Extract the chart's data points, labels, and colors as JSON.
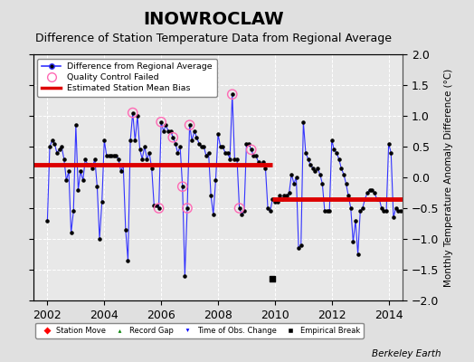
{
  "title": "INOWROCLAW",
  "subtitle": "Difference of Station Temperature Data from Regional Average",
  "ylabel": "Monthly Temperature Anomaly Difference (°C)",
  "xlim": [
    2001.5,
    2014.5
  ],
  "ylim": [
    -2,
    2
  ],
  "yticks": [
    -2,
    -1.5,
    -1,
    -0.5,
    0,
    0.5,
    1,
    1.5,
    2
  ],
  "xticks": [
    2002,
    2004,
    2006,
    2008,
    2010,
    2012,
    2014
  ],
  "background_color": "#e0e0e0",
  "plot_bg_color": "#e8e8e8",
  "bias_segments": [
    {
      "x_start": 2001.5,
      "x_end": 2009.92,
      "bias": 0.2
    },
    {
      "x_start": 2009.92,
      "x_end": 2014.5,
      "bias": -0.35
    }
  ],
  "empirical_break_x": 2009.92,
  "empirical_break_y": -1.65,
  "monthly_data": [
    [
      2002.0,
      -0.7
    ],
    [
      2002.083,
      0.5
    ],
    [
      2002.167,
      0.6
    ],
    [
      2002.25,
      0.55
    ],
    [
      2002.333,
      0.4
    ],
    [
      2002.417,
      0.45
    ],
    [
      2002.5,
      0.5
    ],
    [
      2002.583,
      0.3
    ],
    [
      2002.667,
      -0.05
    ],
    [
      2002.75,
      0.1
    ],
    [
      2002.833,
      -0.9
    ],
    [
      2002.917,
      -0.55
    ],
    [
      2003.0,
      0.85
    ],
    [
      2003.083,
      -0.2
    ],
    [
      2003.167,
      0.1
    ],
    [
      2003.25,
      -0.05
    ],
    [
      2003.333,
      0.3
    ],
    [
      2003.417,
      0.2
    ],
    [
      2003.5,
      0.2
    ],
    [
      2003.583,
      0.15
    ],
    [
      2003.667,
      0.3
    ],
    [
      2003.75,
      -0.15
    ],
    [
      2003.833,
      -1.0
    ],
    [
      2003.917,
      -0.4
    ],
    [
      2004.0,
      0.6
    ],
    [
      2004.083,
      0.35
    ],
    [
      2004.167,
      0.35
    ],
    [
      2004.25,
      0.35
    ],
    [
      2004.333,
      0.35
    ],
    [
      2004.417,
      0.35
    ],
    [
      2004.5,
      0.3
    ],
    [
      2004.583,
      0.1
    ],
    [
      2004.667,
      0.2
    ],
    [
      2004.75,
      -0.85
    ],
    [
      2004.833,
      -1.35
    ],
    [
      2004.917,
      0.6
    ],
    [
      2005.0,
      1.05
    ],
    [
      2005.083,
      0.6
    ],
    [
      2005.167,
      1.0
    ],
    [
      2005.25,
      0.45
    ],
    [
      2005.333,
      0.3
    ],
    [
      2005.417,
      0.5
    ],
    [
      2005.5,
      0.3
    ],
    [
      2005.583,
      0.4
    ],
    [
      2005.667,
      0.15
    ],
    [
      2005.75,
      -0.45
    ],
    [
      2005.833,
      -0.45
    ],
    [
      2005.917,
      -0.5
    ],
    [
      2006.0,
      0.9
    ],
    [
      2006.083,
      0.75
    ],
    [
      2006.167,
      0.85
    ],
    [
      2006.25,
      0.75
    ],
    [
      2006.333,
      0.75
    ],
    [
      2006.417,
      0.65
    ],
    [
      2006.5,
      0.55
    ],
    [
      2006.583,
      0.4
    ],
    [
      2006.667,
      0.5
    ],
    [
      2006.75,
      -0.15
    ],
    [
      2006.833,
      -1.6
    ],
    [
      2006.917,
      -0.5
    ],
    [
      2007.0,
      0.85
    ],
    [
      2007.083,
      0.6
    ],
    [
      2007.167,
      0.75
    ],
    [
      2007.25,
      0.65
    ],
    [
      2007.333,
      0.55
    ],
    [
      2007.417,
      0.5
    ],
    [
      2007.5,
      0.5
    ],
    [
      2007.583,
      0.35
    ],
    [
      2007.667,
      0.4
    ],
    [
      2007.75,
      -0.3
    ],
    [
      2007.833,
      -0.6
    ],
    [
      2007.917,
      -0.05
    ],
    [
      2008.0,
      0.7
    ],
    [
      2008.083,
      0.5
    ],
    [
      2008.167,
      0.5
    ],
    [
      2008.25,
      0.4
    ],
    [
      2008.333,
      0.4
    ],
    [
      2008.417,
      0.3
    ],
    [
      2008.5,
      1.35
    ],
    [
      2008.583,
      0.3
    ],
    [
      2008.667,
      0.3
    ],
    [
      2008.75,
      -0.5
    ],
    [
      2008.833,
      -0.6
    ],
    [
      2008.917,
      -0.55
    ],
    [
      2009.0,
      0.55
    ],
    [
      2009.083,
      0.55
    ],
    [
      2009.167,
      0.45
    ],
    [
      2009.25,
      0.35
    ],
    [
      2009.333,
      0.35
    ],
    [
      2009.417,
      0.25
    ],
    [
      2009.5,
      0.2
    ],
    [
      2009.583,
      0.25
    ],
    [
      2009.667,
      0.15
    ],
    [
      2009.75,
      -0.5
    ],
    [
      2009.833,
      -0.55
    ],
    [
      2009.917,
      -0.35
    ],
    [
      2010.0,
      -0.4
    ],
    [
      2010.083,
      -0.4
    ],
    [
      2010.167,
      -0.3
    ],
    [
      2010.25,
      -0.35
    ],
    [
      2010.333,
      -0.3
    ],
    [
      2010.417,
      -0.3
    ],
    [
      2010.5,
      -0.25
    ],
    [
      2010.583,
      0.05
    ],
    [
      2010.667,
      -0.1
    ],
    [
      2010.75,
      0.0
    ],
    [
      2010.833,
      -1.15
    ],
    [
      2010.917,
      -1.1
    ],
    [
      2011.0,
      0.9
    ],
    [
      2011.083,
      0.4
    ],
    [
      2011.167,
      0.3
    ],
    [
      2011.25,
      0.2
    ],
    [
      2011.333,
      0.15
    ],
    [
      2011.417,
      0.1
    ],
    [
      2011.5,
      0.15
    ],
    [
      2011.583,
      0.05
    ],
    [
      2011.667,
      -0.1
    ],
    [
      2011.75,
      -0.55
    ],
    [
      2011.833,
      -0.55
    ],
    [
      2011.917,
      -0.55
    ],
    [
      2012.0,
      0.6
    ],
    [
      2012.083,
      0.45
    ],
    [
      2012.167,
      0.4
    ],
    [
      2012.25,
      0.3
    ],
    [
      2012.333,
      0.15
    ],
    [
      2012.417,
      0.05
    ],
    [
      2012.5,
      -0.1
    ],
    [
      2012.583,
      -0.3
    ],
    [
      2012.667,
      -0.5
    ],
    [
      2012.75,
      -1.05
    ],
    [
      2012.833,
      -0.7
    ],
    [
      2012.917,
      -1.25
    ],
    [
      2013.0,
      -0.55
    ],
    [
      2013.083,
      -0.5
    ],
    [
      2013.167,
      -0.35
    ],
    [
      2013.25,
      -0.25
    ],
    [
      2013.333,
      -0.2
    ],
    [
      2013.417,
      -0.2
    ],
    [
      2013.5,
      -0.25
    ],
    [
      2013.583,
      -0.35
    ],
    [
      2013.667,
      -0.35
    ],
    [
      2013.75,
      -0.5
    ],
    [
      2013.833,
      -0.55
    ],
    [
      2013.917,
      -0.55
    ],
    [
      2014.0,
      0.55
    ],
    [
      2014.083,
      0.4
    ],
    [
      2014.167,
      -0.65
    ],
    [
      2014.25,
      -0.5
    ],
    [
      2014.333,
      -0.55
    ],
    [
      2014.417,
      -0.55
    ]
  ],
  "qc_failed_points": [
    [
      2005.0,
      1.05
    ],
    [
      2005.917,
      -0.5
    ],
    [
      2006.0,
      0.9
    ],
    [
      2006.417,
      0.65
    ],
    [
      2006.75,
      -0.15
    ],
    [
      2006.917,
      -0.5
    ],
    [
      2007.0,
      0.85
    ],
    [
      2008.5,
      1.35
    ],
    [
      2008.75,
      -0.5
    ],
    [
      2009.167,
      0.45
    ]
  ],
  "line_color": "#3333ff",
  "dot_color": "#000000",
  "bias_color": "#dd0000",
  "qc_color": "#ff69b4",
  "footer_text": "Berkeley Earth",
  "title_fontsize": 14,
  "subtitle_fontsize": 9,
  "tick_fontsize": 9,
  "ylabel_fontsize": 7.5
}
